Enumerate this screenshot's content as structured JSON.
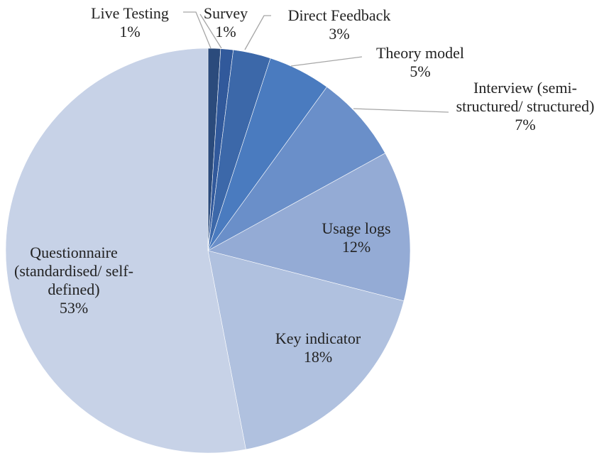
{
  "chart_data": {
    "type": "pie",
    "categories": [
      "Live Testing",
      "Survey",
      "Direct Feedback",
      "Theory model",
      "Interview (semi-structured/ structured)",
      "Usage logs",
      "Key indicator",
      "Questionnaire (standardised/ self-defined)"
    ],
    "values": [
      1,
      1,
      3,
      5,
      7,
      12,
      18,
      53
    ],
    "value_labels": [
      "1%",
      "1%",
      "3%",
      "5%",
      "7%",
      "12%",
      "18%",
      "53%"
    ],
    "colors": [
      "#2b4b7c",
      "#31599b",
      "#3c68a9",
      "#4a7bbf",
      "#6a8fc9",
      "#94abd5",
      "#b0c1df",
      "#c7d2e7"
    ]
  }
}
